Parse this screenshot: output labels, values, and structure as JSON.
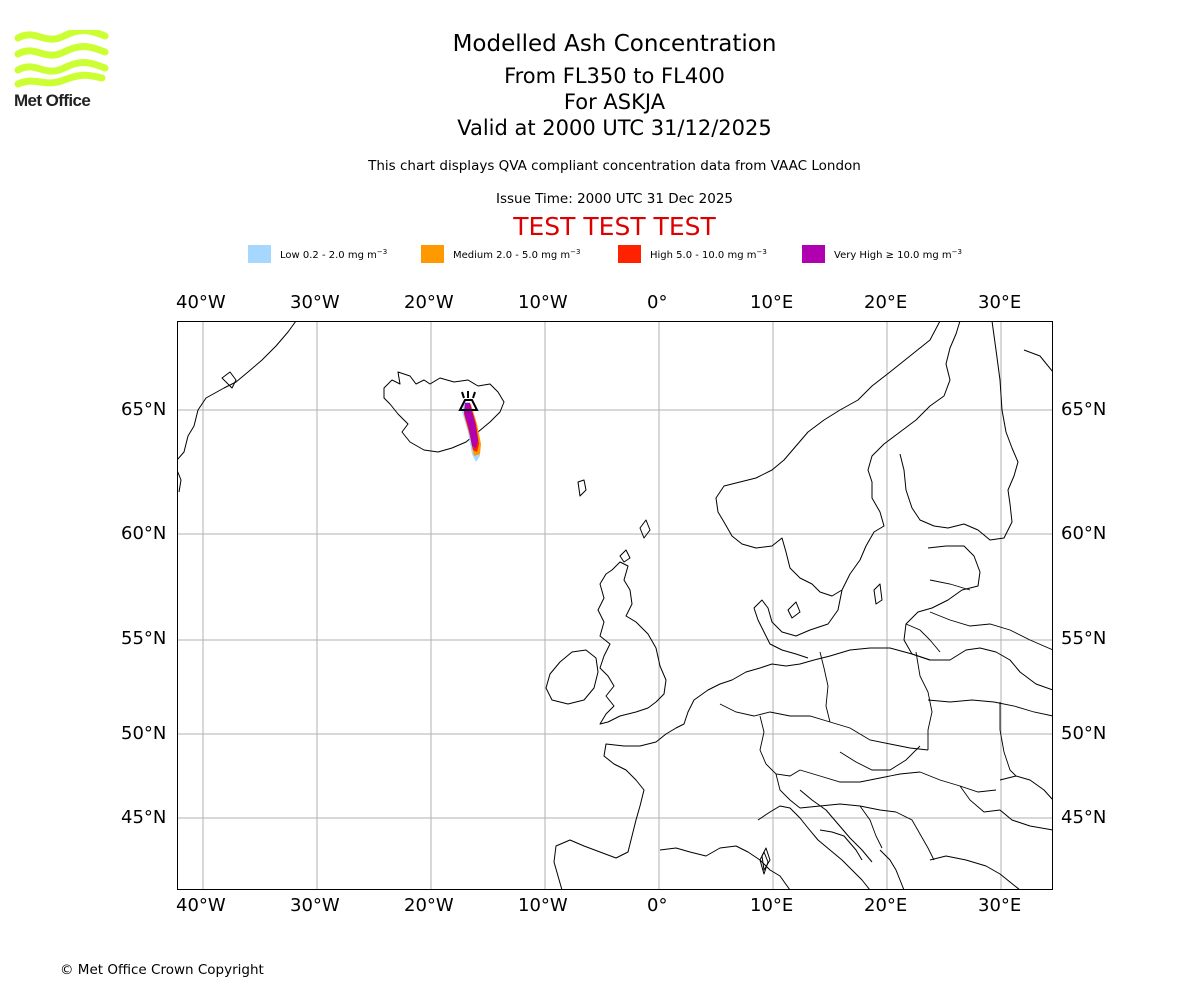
{
  "logo": {
    "text": "Met Office",
    "icon": "met-office-wave-logo",
    "color": "#ccff33"
  },
  "titles": {
    "main": "Modelled Ash Concentration",
    "levels": "From FL350 to FL400",
    "volcano": "For ASKJA",
    "valid": "Valid at 2000 UTC 31/12/2025"
  },
  "subtitle": "This chart displays QVA compliant concentration data from VAAC London",
  "issue_time": "Issue Time: 2000 UTC 31 Dec 2025",
  "test_banner": "TEST TEST TEST",
  "legend": [
    {
      "label": "Low 0.2 - 2.0 mg m",
      "unit_exp": "−3",
      "color": "#a6d8ff"
    },
    {
      "label": "Medium 2.0 - 5.0 mg m",
      "unit_exp": "−3",
      "color": "#ff9900"
    },
    {
      "label": "High 5.0 - 10.0 mg m",
      "unit_exp": "−3",
      "color": "#ff2200"
    },
    {
      "label": "Very High ≥ 10.0 mg m",
      "unit_exp": "−3",
      "color": "#b000b0"
    }
  ],
  "map": {
    "lon_ticks": [
      "40°W",
      "30°W",
      "20°W",
      "10°W",
      "0°",
      "10°E",
      "20°E",
      "30°E"
    ],
    "lat_ticks": [
      "65°N",
      "60°N",
      "55°N",
      "50°N",
      "45°N"
    ],
    "volcano_icon": "volcano-icon",
    "gridline_color": "#b0b0b0"
  },
  "copyright": "© Met Office Crown Copyright"
}
